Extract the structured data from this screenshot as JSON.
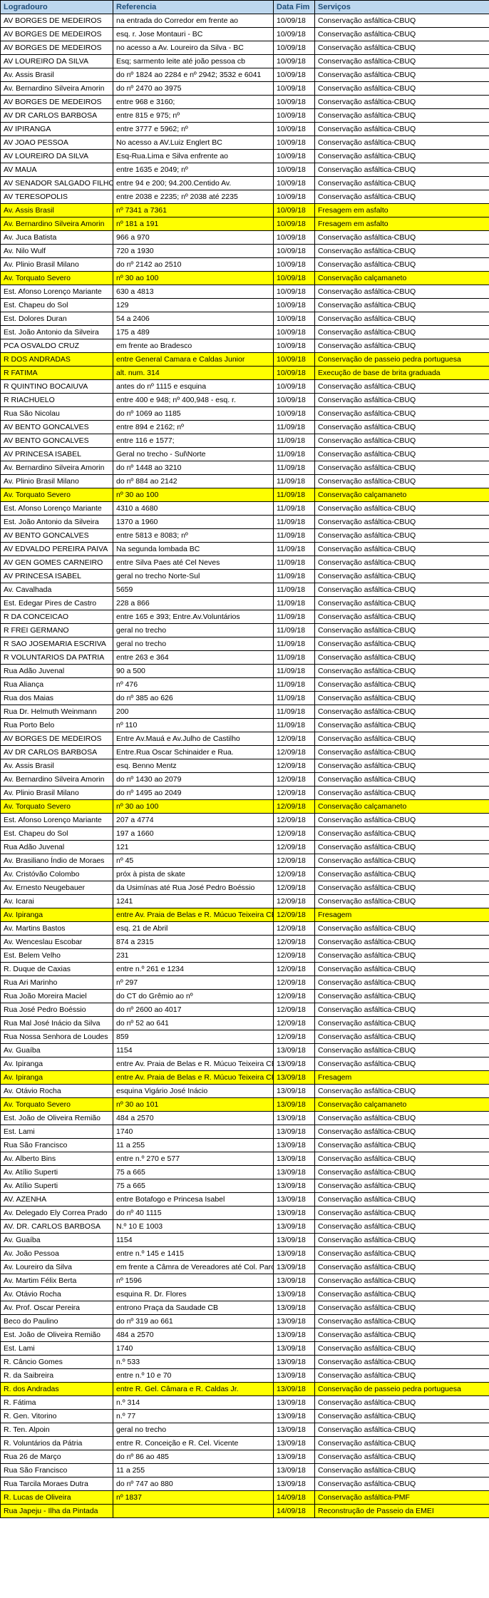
{
  "headers": [
    "Logradouro",
    "Referencia",
    "Data Fim",
    "Serviços"
  ],
  "col_widths": [
    "158px",
    "225px",
    "58px",
    "245px"
  ],
  "header_bg": "#bdd7ee",
  "header_fg": "#1f4e79",
  "highlight_bg": "#ffff00",
  "rows": [
    {
      "c": [
        "AV BORGES DE MEDEIROS",
        "na entrada do Corredor em frente ao",
        "10/09/18",
        "Conservação asfáltica-CBUQ"
      ]
    },
    {
      "c": [
        "AV BORGES DE MEDEIROS",
        "esq. r. Jose Montauri - BC",
        "10/09/18",
        "Conservação asfáltica-CBUQ"
      ]
    },
    {
      "c": [
        "AV BORGES DE MEDEIROS",
        "no acesso a Av. Loureiro da Silva - BC",
        "10/09/18",
        "Conservação asfáltica-CBUQ"
      ]
    },
    {
      "c": [
        "AV LOUREIRO DA SILVA",
        "Esq; sarmento leite até joão pessoa cb",
        "10/09/18",
        "Conservação asfáltica-CBUQ"
      ]
    },
    {
      "c": [
        "Av. Assis Brasil",
        "do nº 1824 ao 2284 e nº 2942; 3532 e 6041",
        "10/09/18",
        "Conservação asfáltica-CBUQ"
      ]
    },
    {
      "c": [
        "Av. Bernardino Silveira Amorin",
        "do nº 2470 ao 3975",
        "10/09/18",
        "Conservação asfáltica-CBUQ"
      ]
    },
    {
      "c": [
        "AV BORGES DE MEDEIROS",
        "entre 968 e 3160;",
        "10/09/18",
        "Conservação asfáltica-CBUQ"
      ]
    },
    {
      "c": [
        "AV DR CARLOS BARBOSA",
        "entre 815 e 975; nº",
        "10/09/18",
        "Conservação asfáltica-CBUQ"
      ]
    },
    {
      "c": [
        "AV IPIRANGA",
        "entre 3777 e 5962; nº",
        "10/09/18",
        "Conservação asfáltica-CBUQ"
      ]
    },
    {
      "c": [
        "AV JOAO PESSOA",
        "No acesso a AV.Luiz Englert BC",
        "10/09/18",
        "Conservação asfáltica-CBUQ"
      ]
    },
    {
      "c": [
        "AV LOUREIRO DA SILVA",
        "Esq-Rua.Lima e Silva enfrente ao",
        "10/09/18",
        "Conservação asfáltica-CBUQ"
      ]
    },
    {
      "c": [
        "AV MAUA",
        "entre 1635 e 2049; nº",
        "10/09/18",
        "Conservação asfáltica-CBUQ"
      ]
    },
    {
      "c": [
        "AV SENADOR SALGADO FILHO",
        "entre 94 e 200; 94.200.Centido Av.",
        "10/09/18",
        "Conservação asfáltica-CBUQ"
      ]
    },
    {
      "c": [
        "AV TERESOPOLIS",
        "entre 2038 e 2235; nº 2038 até 2235",
        "10/09/18",
        "Conservação asfáltica-CBUQ"
      ]
    },
    {
      "c": [
        "Av. Assis Brasil",
        "nº 7341 a 7361",
        "10/09/18",
        "Fresagem em asfalto"
      ],
      "hl": true
    },
    {
      "c": [
        "Av. Bernardino Silveira Amorin",
        "nº 181 a 191",
        "10/09/18",
        "Fresagem em asfalto"
      ],
      "hl": true
    },
    {
      "c": [
        "Av. Juca Batista",
        "966 a 970",
        "10/09/18",
        "Conservação asfáltica-CBUQ"
      ]
    },
    {
      "c": [
        "Av. Nilo Wulf",
        "720 a 1930",
        "10/09/18",
        "Conservação asfáltica-CBUQ"
      ]
    },
    {
      "c": [
        "Av. Plinio Brasil Milano",
        "do nº 2142 ao 2510",
        "10/09/18",
        "Conservação asfáltica-CBUQ"
      ]
    },
    {
      "c": [
        "Av. Torquato Severo",
        "nº 30 ao 100",
        "10/09/18",
        "Conservação calçamaneto"
      ],
      "hl": true
    },
    {
      "c": [
        "Est. Afonso Lorenço  Mariante",
        "630 a 4813",
        "10/09/18",
        "Conservação asfáltica-CBUQ"
      ]
    },
    {
      "c": [
        "Est. Chapeu do Sol",
        "129",
        "10/09/18",
        "Conservação asfáltica-CBUQ"
      ]
    },
    {
      "c": [
        "Est. Dolores Duran",
        "54 a 2406",
        "10/09/18",
        "Conservação asfáltica-CBUQ"
      ]
    },
    {
      "c": [
        "Est. João Antonio da Silveira",
        "175 a 489",
        "10/09/18",
        "Conservação asfáltica-CBUQ"
      ]
    },
    {
      "c": [
        "PCA OSVALDO CRUZ",
        "em frente ao Bradesco",
        "10/09/18",
        "Conservação asfáltica-CBUQ"
      ]
    },
    {
      "c": [
        "R DOS ANDRADAS",
        "entre General Camara e Caldas Junior",
        "10/09/18",
        "Conservação de passeio pedra portuguesa"
      ],
      "hl": true
    },
    {
      "c": [
        "R FATIMA",
        "alt. num. 314",
        "10/09/18",
        "Execução de base de brita graduada"
      ],
      "hl": true
    },
    {
      "c": [
        "R QUINTINO BOCAIUVA",
        "antes do nº 1115 e esquina",
        "10/09/18",
        "Conservação asfáltica-CBUQ"
      ]
    },
    {
      "c": [
        "R RIACHUELO",
        "entre 400 e 948; nº 400,948 - esq. r.",
        "10/09/18",
        "Conservação asfáltica-CBUQ"
      ]
    },
    {
      "c": [
        "Rua São Nicolau",
        "do nº 1069 ao 1185",
        "10/09/18",
        "Conservação asfáltica-CBUQ"
      ]
    },
    {
      "c": [
        "AV BENTO GONCALVES",
        "entre 894 e 2162; nº",
        "11/09/18",
        "Conservação asfáltica-CBUQ"
      ]
    },
    {
      "c": [
        "AV BENTO GONCALVES",
        "entre 116 e 1577;",
        "11/09/18",
        "Conservação asfáltica-CBUQ"
      ]
    },
    {
      "c": [
        "AV PRINCESA ISABEL",
        "Geral no trecho - Sul\\Norte",
        "11/09/18",
        "Conservação asfáltica-CBUQ"
      ]
    },
    {
      "c": [
        "Av. Bernardino Silveira Amorin",
        "do nº 1448 ao 3210",
        "11/09/18",
        "Conservação asfáltica-CBUQ"
      ]
    },
    {
      "c": [
        "Av. Plinio Brasil Milano",
        "do nº 884 ao 2142",
        "11/09/18",
        "Conservação asfáltica-CBUQ"
      ]
    },
    {
      "c": [
        "Av. Torquato Severo",
        "nº 30 ao 100",
        "11/09/18",
        "Conservação calçamaneto"
      ],
      "hl": true
    },
    {
      "c": [
        "Est. Afonso Lorenço  Mariante",
        "4310 a 4680",
        "11/09/18",
        "Conservação asfáltica-CBUQ"
      ]
    },
    {
      "c": [
        "Est. João Antonio da Silveira",
        "1370 a 1960",
        "11/09/18",
        "Conservação asfáltica-CBUQ"
      ]
    },
    {
      "c": [
        "AV BENTO GONCALVES",
        "entre 5813 e 8083; nº",
        "11/09/18",
        "Conservação asfáltica-CBUQ"
      ]
    },
    {
      "c": [
        "AV EDVALDO PEREIRA PAIVA",
        "Na segunda lombada BC",
        "11/09/18",
        "Conservação asfáltica-CBUQ"
      ]
    },
    {
      "c": [
        "AV GEN GOMES CARNEIRO",
        "entre Silva Paes até Cel Neves",
        "11/09/18",
        "Conservação asfáltica-CBUQ"
      ]
    },
    {
      "c": [
        "AV PRINCESA ISABEL",
        "geral no trecho Norte-Sul",
        "11/09/18",
        "Conservação asfáltica-CBUQ"
      ]
    },
    {
      "c": [
        "Av. Cavalhada",
        "5659",
        "11/09/18",
        "Conservação asfáltica-CBUQ"
      ]
    },
    {
      "c": [
        "Est. Edegar Pires de Castro",
        "228 a 866",
        "11/09/18",
        "Conservação asfáltica-CBUQ"
      ]
    },
    {
      "c": [
        "R DA CONCEICAO",
        "entre 165 e 393; Entre.Av.Voluntários",
        "11/09/18",
        "Conservação asfáltica-CBUQ"
      ]
    },
    {
      "c": [
        "R FREI GERMANO",
        "geral no trecho",
        "11/09/18",
        "Conservação asfáltica-CBUQ"
      ]
    },
    {
      "c": [
        "R SAO JOSEMARIA ESCRIVA",
        "geral no trecho",
        "11/09/18",
        "Conservação asfáltica-CBUQ"
      ]
    },
    {
      "c": [
        "R VOLUNTARIOS DA PATRIA",
        "entre 263 e 364",
        "11/09/18",
        "Conservação asfáltica-CBUQ"
      ]
    },
    {
      "c": [
        "Rua Adão Juvenal",
        "90 a 500",
        "11/09/18",
        "Conservação asfáltica-CBUQ"
      ]
    },
    {
      "c": [
        "Rua Aliança",
        "nº 476",
        "11/09/18",
        "Conservação asfáltica-CBUQ"
      ]
    },
    {
      "c": [
        "Rua dos Maias",
        "do nº 385 ao 626",
        "11/09/18",
        "Conservação asfáltica-CBUQ"
      ]
    },
    {
      "c": [
        "Rua Dr. Helmuth Weinmann",
        "200",
        "11/09/18",
        "Conservação asfáltica-CBUQ"
      ]
    },
    {
      "c": [
        "Rua Porto Belo",
        "nº 110",
        "11/09/18",
        "Conservação asfáltica-CBUQ"
      ]
    },
    {
      "c": [
        "AV BORGES DE MEDEIROS",
        "Entre Av.Mauá e Av.Julho de Castilho",
        "12/09/18",
        "Conservação asfáltica-CBUQ"
      ]
    },
    {
      "c": [
        "AV DR CARLOS BARBOSA",
        "Entre.Rua Oscar Schinaider e Rua.",
        "12/09/18",
        "Conservação asfáltica-CBUQ"
      ]
    },
    {
      "c": [
        "Av. Assis Brasil",
        "esq. Benno Mentz",
        "12/09/18",
        "Conservação asfáltica-CBUQ"
      ]
    },
    {
      "c": [
        "Av. Bernardino Silveira Amorin",
        "do nº 1430 ao 2079",
        "12/09/18",
        "Conservação asfáltica-CBUQ"
      ]
    },
    {
      "c": [
        "Av. Plinio Brasil Milano",
        "do nº 1495 ao 2049",
        "12/09/18",
        "Conservação asfáltica-CBUQ"
      ]
    },
    {
      "c": [
        "Av. Torquato Severo",
        "nº 30 ao 100",
        "12/09/18",
        "Conservação calçamaneto"
      ],
      "hl": true
    },
    {
      "c": [
        "Est. Afonso Lorenço  Mariante",
        "207 a 4774",
        "12/09/18",
        "Conservação asfáltica-CBUQ"
      ]
    },
    {
      "c": [
        "Est. Chapeu do Sol",
        "197 a 1660",
        "12/09/18",
        "Conservação asfáltica-CBUQ"
      ]
    },
    {
      "c": [
        "Rua Adão Juvenal",
        "121",
        "12/09/18",
        "Conservação asfáltica-CBUQ"
      ]
    },
    {
      "c": [
        "Av. Brasiliano Índio de Moraes",
        "nº 45",
        "12/09/18",
        "Conservação asfáltica-CBUQ"
      ]
    },
    {
      "c": [
        "Av. Cristóvão Colombo",
        "próx à pista de skate",
        "12/09/18",
        "Conservação asfáltica-CBUQ"
      ]
    },
    {
      "c": [
        "Av. Ernesto Neugebauer",
        "da Usimínas até Rua José Pedro Boéssio",
        "12/09/18",
        "Conservação asfáltica-CBUQ"
      ]
    },
    {
      "c": [
        "Av. Icarai",
        "1241",
        "12/09/18",
        "Conservação asfáltica-CBUQ"
      ]
    },
    {
      "c": [
        "Av. Ipiranga",
        "entre Av. Praia de Belas e R. Múcuo Teixeira CB",
        "12/09/18",
        "Fresagem"
      ],
      "hl": true
    },
    {
      "c": [
        "Av. Martins Bastos",
        "esq. 21 de Abril",
        "12/09/18",
        "Conservação asfáltica-CBUQ"
      ]
    },
    {
      "c": [
        "Av. Wenceslau Escobar",
        "874 a 2315",
        "12/09/18",
        "Conservação asfáltica-CBUQ"
      ]
    },
    {
      "c": [
        "Est. Belem Velho",
        "231",
        "12/09/18",
        "Conservação asfáltica-CBUQ"
      ]
    },
    {
      "c": [
        "R. Duque de Caxias",
        "entre n.º 261 e 1234",
        "12/09/18",
        "Conservação asfáltica-CBUQ"
      ]
    },
    {
      "c": [
        "Rua Ari Marinho",
        "nº 297",
        "12/09/18",
        "Conservação asfáltica-CBUQ"
      ]
    },
    {
      "c": [
        "Rua João Moreira Maciel",
        "do CT do Grêmio ao nº",
        "12/09/18",
        "Conservação asfáltica-CBUQ"
      ]
    },
    {
      "c": [
        "Rua José Pedro Boéssio",
        "do nº 2600 ao 4017",
        "12/09/18",
        "Conservação asfáltica-CBUQ"
      ]
    },
    {
      "c": [
        "Rua Mal José Inácio da Silva",
        "do nº 52 ao 641",
        "12/09/18",
        "Conservação asfáltica-CBUQ"
      ]
    },
    {
      "c": [
        "Rua Nossa Senhora de Loudes",
        "859",
        "12/09/18",
        "Conservação asfáltica-CBUQ"
      ]
    },
    {
      "c": [
        "Av. Guaíba",
        "1154",
        "13/09/18",
        "Conservação asfáltica-CBUQ"
      ]
    },
    {
      "c": [
        "Av. Ipiranga",
        "entre Av. Praia de Belas e R. Múcuo Teixeira CB",
        "13/09/18",
        "Conservação asfáltica-CBUQ"
      ]
    },
    {
      "c": [
        "Av. Ipiranga",
        "entre Av. Praia de Belas e R. Múcuo Teixeira CB",
        "13/09/18",
        "Fresagem"
      ],
      "hl": true
    },
    {
      "c": [
        "Av. Otávio Rocha",
        "esquina Vigário José Inácio",
        "13/09/18",
        "Conservação asfáltica-CBUQ"
      ]
    },
    {
      "c": [
        "Av. Torquato Severo",
        "nº 30 ao 101",
        "13/09/18",
        "Conservação calçamaneto"
      ],
      "hl": true
    },
    {
      "c": [
        "Est. João de Oliveira Remião",
        "484 a 2570",
        "13/09/18",
        "Conservação asfáltica-CBUQ"
      ]
    },
    {
      "c": [
        "Est. Lami",
        "1740",
        "13/09/18",
        "Conservação asfáltica-CBUQ"
      ]
    },
    {
      "c": [
        "Rua São Francisco",
        "11 a 255",
        "13/09/18",
        "Conservação asfáltica-CBUQ"
      ]
    },
    {
      "c": [
        "Av. Alberto Bins",
        "entre n.º 270 e 577",
        "13/09/18",
        "Conservação asfáltica-CBUQ"
      ]
    },
    {
      "c": [
        "Av. Atílio Superti",
        "75 a 665",
        "13/09/18",
        "Conservação asfáltica-CBUQ"
      ]
    },
    {
      "c": [
        "Av. Atílio Superti",
        "75 a 665",
        "13/09/18",
        "Conservação asfáltica-CBUQ"
      ]
    },
    {
      "c": [
        "AV. AZENHA",
        "entre Botafogo e Princesa Isabel",
        "13/09/18",
        "Conservação asfáltica-CBUQ"
      ]
    },
    {
      "c": [
        "Av. Delegado Ely Correa Prado",
        "do nº 40 1115",
        "13/09/18",
        "Conservação asfáltica-CBUQ"
      ]
    },
    {
      "c": [
        "AV. DR. CARLOS BARBOSA",
        "N.º 10 E 1003",
        "13/09/18",
        "Conservação asfáltica-CBUQ"
      ]
    },
    {
      "c": [
        "Av. Guaíba",
        "1154",
        "13/09/18",
        "Conservação asfáltica-CBUQ"
      ]
    },
    {
      "c": [
        "Av. João Pessoa",
        "entre n.º 145 e 1415",
        "13/09/18",
        "Conservação asfáltica-CBUQ"
      ]
    },
    {
      "c": [
        "Av. Loureiro da Silva",
        "em frente a Câmra de Vereadores até Col. Parobé",
        "13/09/18",
        "Conservação asfáltica-CBUQ"
      ]
    },
    {
      "c": [
        "Av. Martim Félix Berta",
        "nº 1596",
        "13/09/18",
        "Conservação asfáltica-CBUQ"
      ]
    },
    {
      "c": [
        "Av. Otávio Rocha",
        "esquina R. Dr. Flores",
        "13/09/18",
        "Conservação asfáltica-CBUQ"
      ]
    },
    {
      "c": [
        "Av. Prof. Oscar Pereira",
        "entrono Praça da Saudade CB",
        "13/09/18",
        "Conservação asfáltica-CBUQ"
      ]
    },
    {
      "c": [
        "Beco do Paulino",
        "do nº 319 ao 661",
        "13/09/18",
        "Conservação asfáltica-CBUQ"
      ]
    },
    {
      "c": [
        "Est. João de Oliveira Remião",
        "484 a 2570",
        "13/09/18",
        "Conservação asfáltica-CBUQ"
      ]
    },
    {
      "c": [
        "Est. Lami",
        "1740",
        "13/09/18",
        "Conservação asfáltica-CBUQ"
      ]
    },
    {
      "c": [
        "R. Câncio Gomes",
        "n.º 533",
        "13/09/18",
        "Conservação asfáltica-CBUQ"
      ]
    },
    {
      "c": [
        "R. da Saibreira",
        "entre n.º 10 e 70",
        "13/09/18",
        "Conservação asfáltica-CBUQ"
      ]
    },
    {
      "c": [
        "R. dos Andradas",
        "entre R. Gel. Câmara e R. Caldas Jr.",
        "13/09/18",
        "Conservação de passeio pedra portuguesa"
      ],
      "hl": true
    },
    {
      "c": [
        "R. Fátima",
        "n.º 314",
        "13/09/18",
        "Conservação asfáltica-CBUQ"
      ]
    },
    {
      "c": [
        "R. Gen. Vitorino",
        "n.º 77",
        "13/09/18",
        "Conservação asfáltica-CBUQ"
      ]
    },
    {
      "c": [
        "R. Ten. Alpoin",
        "geral no trecho",
        "13/09/18",
        "Conservação asfáltica-CBUQ"
      ]
    },
    {
      "c": [
        "R. Voluntários da Pátria",
        "entre R. Conceição e R. Cel. Vicente",
        "13/09/18",
        "Conservação asfáltica-CBUQ"
      ]
    },
    {
      "c": [
        "Rua 26 de Março",
        "do nº 86 ao 485",
        "13/09/18",
        "Conservação asfáltica-CBUQ"
      ]
    },
    {
      "c": [
        "Rua São Francisco",
        "11 a 255",
        "13/09/18",
        "Conservação asfáltica-CBUQ"
      ]
    },
    {
      "c": [
        "Rua Tarcila Moraes Dutra",
        "do nº 747 ao 880",
        "13/09/18",
        "Conservação asfáltica-CBUQ"
      ]
    },
    {
      "c": [
        "R. Lucas de Oliveira",
        "nº 1837",
        "14/09/18",
        "Conservação asfáltica-PMF"
      ],
      "hl": true
    },
    {
      "c": [
        "Rua Japeju - Ilha da Pintada",
        "",
        "14/09/18",
        "Reconstrução de Passeio da EMEI"
      ],
      "hl": true
    }
  ]
}
